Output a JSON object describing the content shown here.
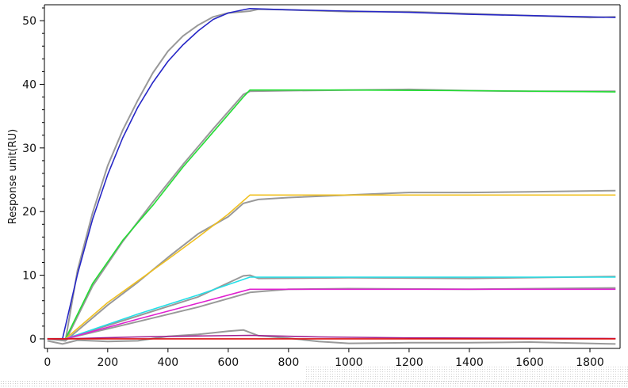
{
  "chart_data": {
    "type": "line",
    "title": "",
    "xlabel": "",
    "ylabel": "Response unit(RU)",
    "xlim": [
      -10,
      1900
    ],
    "ylim": [
      -1.5,
      52.5
    ],
    "grid": false,
    "legend": "none",
    "x_ticks": [
      "0",
      "200",
      "400",
      "600",
      "800",
      "1000",
      "1200",
      "1400",
      "1600",
      "1800"
    ],
    "y_ticks": [
      "0",
      "10",
      "20",
      "30",
      "40",
      "50"
    ],
    "series": [
      {
        "role": "fit",
        "color": "#2727c6",
        "x": [
          0,
          50,
          100,
          150,
          200,
          250,
          300,
          350,
          400,
          450,
          500,
          550,
          600,
          650,
          672,
          800,
          1000,
          1200,
          1400,
          1600,
          1800,
          1885
        ],
        "y": [
          0,
          0,
          10.2,
          18.8,
          25.8,
          31.6,
          36.4,
          40.3,
          43.6,
          46.2,
          48.4,
          50.2,
          51.2,
          51.7,
          51.9,
          51.7,
          51.5,
          51.3,
          51.0,
          50.8,
          50.6,
          50.5
        ]
      },
      {
        "role": "fit",
        "color": "#22dd33",
        "x": [
          0,
          60,
          150,
          250,
          350,
          450,
          550,
          650,
          672,
          1000,
          1400,
          1885
        ],
        "y": [
          0,
          0,
          8.7,
          15.5,
          21.0,
          27.0,
          32.5,
          38.0,
          39.1,
          39.1,
          39.0,
          38.8
        ]
      },
      {
        "role": "fit",
        "color": "#f0c020",
        "x": [
          0,
          60,
          200,
          300,
          400,
          500,
          600,
          672,
          1000,
          1400,
          1885
        ],
        "y": [
          0,
          0,
          5.7,
          9.1,
          12.5,
          16.0,
          19.6,
          22.6,
          22.6,
          22.6,
          22.6
        ]
      },
      {
        "role": "fit",
        "color": "#22e0e8",
        "x": [
          0,
          60,
          300,
          500,
          672,
          1000,
          1400,
          1885
        ],
        "y": [
          0,
          0,
          3.9,
          6.9,
          9.7,
          9.7,
          9.7,
          9.7
        ]
      },
      {
        "role": "fit",
        "color": "#e020d0",
        "x": [
          0,
          60,
          300,
          500,
          672,
          1000,
          1400,
          1885
        ],
        "y": [
          0,
          0,
          3.1,
          5.6,
          7.8,
          7.8,
          7.8,
          7.8
        ]
      },
      {
        "role": "fit",
        "color": "#a02090",
        "x": [
          0,
          60,
          300,
          500,
          672,
          900,
          1200,
          1885
        ],
        "y": [
          0,
          0,
          0.3,
          0.45,
          0.55,
          0.3,
          0.15,
          0.05
        ]
      },
      {
        "role": "fit",
        "color": "#dd1111",
        "x": [
          0,
          1885
        ],
        "y": [
          0,
          0
        ]
      },
      {
        "role": "data",
        "color": "#999999",
        "x": [
          0,
          60,
          100,
          150,
          200,
          250,
          300,
          350,
          400,
          450,
          500,
          550,
          600,
          650,
          672,
          700,
          800,
          1000,
          1200,
          1400,
          1600,
          1800,
          1885
        ],
        "y": [
          0,
          -0.2,
          10.8,
          19.8,
          27.2,
          32.8,
          37.5,
          41.8,
          45.2,
          47.6,
          49.3,
          50.6,
          51.2,
          51.4,
          51.5,
          51.8,
          51.7,
          51.4,
          51.4,
          51.1,
          50.8,
          50.5,
          50.6
        ]
      },
      {
        "role": "data",
        "color": "#999999",
        "x": [
          0,
          60,
          150,
          250,
          350,
          450,
          550,
          650,
          672,
          800,
          1000,
          1200,
          1400,
          1600,
          1885
        ],
        "y": [
          0,
          -0.3,
          8.3,
          15.3,
          21.5,
          27.4,
          33.0,
          38.4,
          38.9,
          39.0,
          39.1,
          39.2,
          39.0,
          38.9,
          38.9
        ]
      },
      {
        "role": "data",
        "color": "#999999",
        "x": [
          0,
          60,
          200,
          300,
          400,
          500,
          600,
          650,
          700,
          800,
          1000,
          1200,
          1400,
          1600,
          1885
        ],
        "y": [
          0,
          -0.3,
          5.3,
          8.9,
          12.8,
          16.5,
          19.2,
          21.3,
          21.9,
          22.2,
          22.6,
          23.0,
          23.0,
          23.1,
          23.3
        ]
      },
      {
        "role": "data",
        "color": "#999999",
        "x": [
          0,
          60,
          300,
          500,
          650,
          672,
          700,
          1000,
          1400,
          1885
        ],
        "y": [
          0,
          0,
          3.6,
          6.6,
          9.9,
          10.0,
          9.5,
          9.6,
          9.5,
          9.8
        ]
      },
      {
        "role": "data",
        "color": "#999999",
        "x": [
          0,
          60,
          300,
          500,
          672,
          800,
          1000,
          1400,
          1885
        ],
        "y": [
          0,
          0,
          2.7,
          5.0,
          7.3,
          7.8,
          7.9,
          7.8,
          8.0
        ]
      },
      {
        "role": "data",
        "color": "#999999",
        "x": [
          0,
          50,
          100,
          200,
          300,
          400,
          500,
          600,
          650,
          700,
          800,
          900,
          1000,
          1200,
          1400,
          1600,
          1885
        ],
        "y": [
          -0.3,
          -0.8,
          -0.2,
          -0.4,
          -0.3,
          0.4,
          0.7,
          1.2,
          1.4,
          0.5,
          0.1,
          -0.4,
          -0.7,
          -0.6,
          -0.6,
          -0.5,
          -0.8
        ]
      }
    ]
  }
}
